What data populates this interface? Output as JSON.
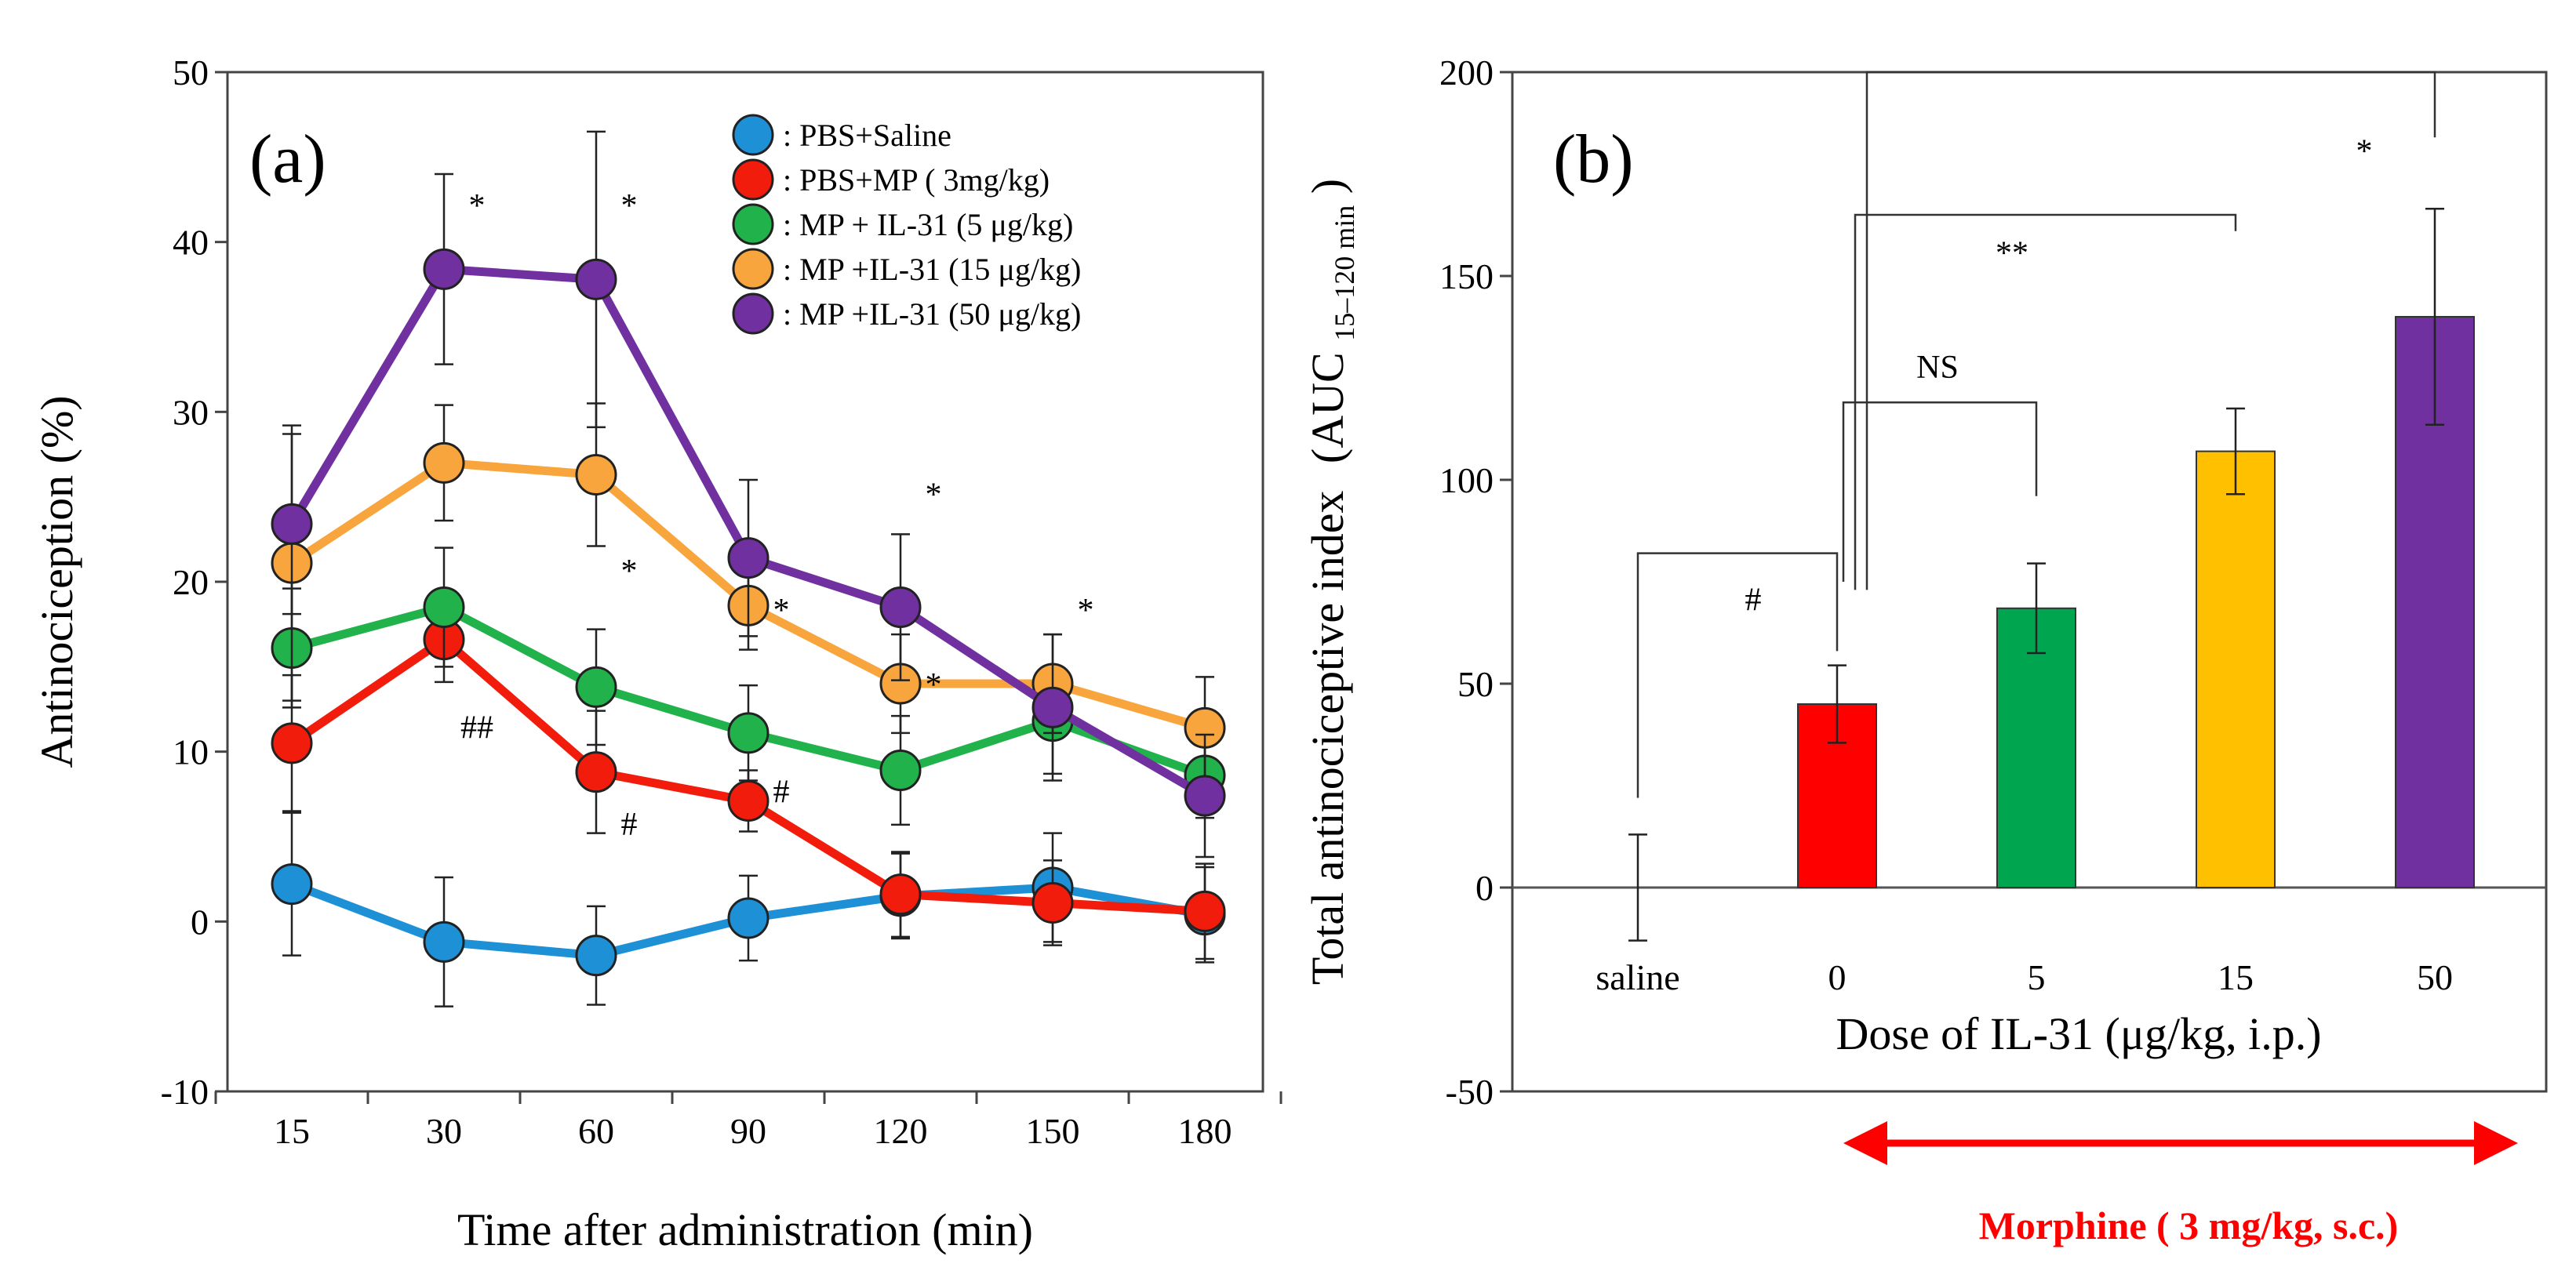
{
  "colors": {
    "pbs_saline": "#1e90d6",
    "pbs_mp": "#f21c0c",
    "il31_5": "#22b24c",
    "il31_15": "#f7a53c",
    "il31_50": "#7030a0",
    "bar_0": "#ff0000",
    "bar_5": "#00a550",
    "bar_15": "#ffc000",
    "bar_50": "#7030a0",
    "morphine_arrow": "#ff0000"
  },
  "chart_data": [
    {
      "type": "line",
      "panel_label": "(a)",
      "xlabel": "Time after administration (min)",
      "ylabel": "Antinociception (%)",
      "categories": [
        "15",
        "30",
        "60",
        "90",
        "120",
        "150",
        "180"
      ],
      "ylim": [
        -10,
        50
      ],
      "yticks": [
        "-10",
        "0",
        "10",
        "20",
        "30",
        "40",
        "50"
      ],
      "grid": false,
      "legend_position": "top-right",
      "series": [
        {
          "name": ": PBS+Saline",
          "color_key": "pbs_saline",
          "values": [
            2.2,
            -1.2,
            -2.0,
            0.2,
            1.5,
            2.0,
            0.4
          ],
          "errors": [
            4.2,
            3.8,
            2.9,
            2.5,
            2.5,
            3.2,
            2.8
          ]
        },
        {
          "name": ": PBS+MP ( 3mg/kg)",
          "color_key": "pbs_mp",
          "values": [
            10.5,
            16.6,
            8.8,
            7.1,
            1.6,
            1.1,
            0.6
          ],
          "errors": [
            4.0,
            2.5,
            3.6,
            1.8,
            2.5,
            2.5,
            2.8
          ]
        },
        {
          "name": ": MP + IL-31 (5 μg/kg)",
          "color_key": "il31_5",
          "values": [
            16.1,
            18.5,
            13.8,
            11.1,
            8.9,
            11.8,
            8.6
          ],
          "errors": [
            3.5,
            3.5,
            3.4,
            2.8,
            3.2,
            3.1,
            2.5
          ]
        },
        {
          "name": ": MP +IL-31 (15 μg/kg)",
          "color_key": "il31_15",
          "values": [
            21.1,
            27.0,
            26.3,
            18.6,
            14.0,
            14.0,
            11.4
          ],
          "errors": [
            8.1,
            3.4,
            4.2,
            2.6,
            2.9,
            2.9,
            3.0
          ]
        },
        {
          "name": ": MP +IL-31 (50 μg/kg)",
          "color_key": "il31_50",
          "values": [
            23.4,
            38.4,
            37.8,
            21.4,
            18.5,
            12.6,
            7.4
          ],
          "errors": [
            5.3,
            5.6,
            8.7,
            4.6,
            4.3,
            4.3,
            3.6
          ]
        }
      ],
      "annotations": [
        {
          "text": "*",
          "x": "30",
          "y": 41.5
        },
        {
          "text": "*",
          "x": "60",
          "y": 41.5
        },
        {
          "text": "##",
          "x": "30",
          "y": 10.8
        },
        {
          "text": "*",
          "x": "60",
          "y": 20.0
        },
        {
          "text": "#",
          "x": "60",
          "y": 5.1
        },
        {
          "text": "*",
          "x": "90",
          "y": 17.7
        },
        {
          "text": "#",
          "x": "90",
          "y": 7.0
        },
        {
          "text": "*",
          "x": "120",
          "y": 24.5
        },
        {
          "text": "*",
          "x": "120",
          "y": 13.3
        },
        {
          "text": "*",
          "x": "150",
          "y": 17.7
        }
      ]
    },
    {
      "type": "bar",
      "panel_label": "(b)",
      "ylabel": "Total antinociceptive index",
      "ylabel_suffix_main": "(AUC",
      "ylabel_suffix_sub": "15–120 min",
      "ylabel_suffix_close": ")",
      "xlabel": "Dose of IL-31 (μg/kg, i.p.)",
      "categories": [
        "saline",
        "0",
        "5",
        "15",
        "50"
      ],
      "values": [
        0,
        45,
        68.5,
        107,
        140
      ],
      "errors": [
        13,
        9.5,
        11,
        10.5,
        26.5
      ],
      "color_keys": [
        null,
        "bar_0",
        "bar_5",
        "bar_15",
        "bar_50"
      ],
      "ylim": [
        -50,
        200
      ],
      "yticks": [
        "-50",
        "0",
        "50",
        "100",
        "150",
        "200"
      ],
      "grid": false,
      "brackets": [
        {
          "label": "#",
          "from": "saline",
          "to": "0"
        },
        {
          "label": "NS",
          "from": "0",
          "to": "5"
        },
        {
          "label": "**",
          "from": "0",
          "to": "15"
        },
        {
          "label": "*",
          "from": "0",
          "to": "50"
        }
      ],
      "range_note": "Morphine ( 3 mg/kg, s.c.)"
    }
  ]
}
